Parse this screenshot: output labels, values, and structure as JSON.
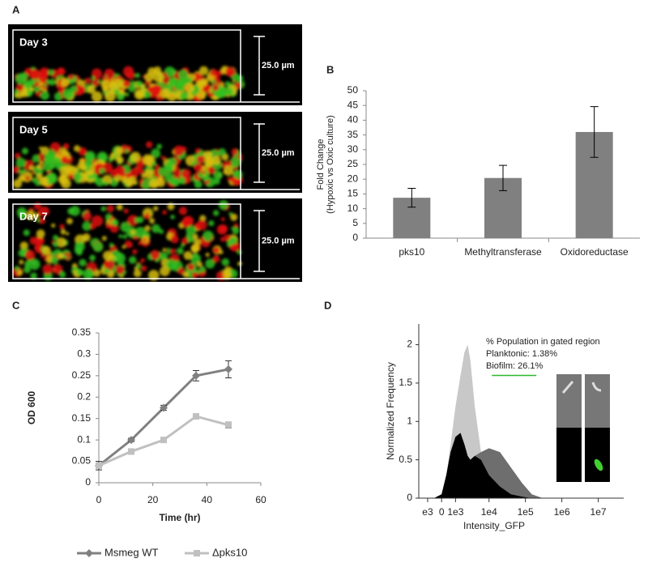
{
  "panel_a": {
    "panel": "A",
    "images": [
      {
        "label": "Day 3",
        "scale": "25.0 µm"
      },
      {
        "label": "Day 5",
        "scale": "25.0 µm"
      },
      {
        "label": "Day 7",
        "scale": "25.0 µm"
      }
    ]
  },
  "chart_data": [
    {
      "type": "bar",
      "panel": "B",
      "ylabel": [
        "Fold Change",
        "(Hypoxic vs Oxic culture)"
      ],
      "categories": [
        "pks10",
        "Methyltransferase",
        "Oxidoreductase"
      ],
      "values": [
        13.7,
        20.4,
        36
      ],
      "errors": [
        3.2,
        4.3,
        8.6
      ],
      "color": "#808080",
      "ylim": [
        0,
        50
      ],
      "yticks": [
        0,
        5,
        10,
        15,
        20,
        25,
        30,
        35,
        40,
        45,
        50
      ]
    },
    {
      "type": "line",
      "panel": "C",
      "xlabel": "Time (hr)",
      "ylabel": "OD 600",
      "x": [
        0,
        12,
        24,
        36,
        48
      ],
      "series": [
        {
          "name": "Msmeg WT",
          "color": "#808080",
          "marker": "diamond",
          "values": [
            0.04,
            0.1,
            0.175,
            0.25,
            0.265
          ],
          "errors": [
            0.005,
            0.004,
            0.006,
            0.012,
            0.02
          ]
        },
        {
          "name": "Δpks10",
          "color": "#c0c0c0",
          "marker": "square",
          "values": [
            0.04,
            0.073,
            0.1,
            0.155,
            0.135
          ],
          "errors": [
            0.01,
            0.006,
            0.003,
            0.005,
            0.007
          ]
        }
      ],
      "xlim": [
        0,
        60
      ],
      "xticks": [
        0,
        20,
        40,
        60
      ],
      "ylim": [
        0,
        0.35
      ],
      "yticks": [
        0,
        0.05,
        0.1,
        0.15,
        0.2,
        0.25,
        0.3,
        0.35
      ]
    },
    {
      "type": "area",
      "panel": "D",
      "xlabel": "Intensity_GFP",
      "ylabel": "Normalized Frequency",
      "xscale": "biexponential",
      "annotation": [
        "% Population in gated region",
        "Planktonic: 1.38%",
        "Biofilm: 26.1%"
      ],
      "gate": {
        "x": [
          12000,
          200000
        ],
        "y": 1.6,
        "color": "#2eb82e"
      },
      "x": [
        -500,
        0,
        300,
        600,
        1000,
        1500,
        2000,
        2500,
        3000,
        4000,
        6000,
        10000,
        20000,
        40000,
        80000,
        150000,
        300000
      ],
      "series": [
        {
          "color": "#c8c8c8",
          "values": [
            0,
            0.05,
            0.3,
            0.7,
            1.2,
            1.6,
            1.9,
            2.0,
            1.8,
            1.2,
            0.6,
            0.3,
            0.15,
            0.05,
            0.02,
            0,
            0
          ]
        },
        {
          "color": "#6e6e6e",
          "values": [
            0,
            0.05,
            0.3,
            0.6,
            0.8,
            0.85,
            0.7,
            0.55,
            0.5,
            0.55,
            0.6,
            0.65,
            0.6,
            0.4,
            0.2,
            0.05,
            0
          ]
        },
        {
          "color": "#000000",
          "values": [
            0,
            0.05,
            0.3,
            0.6,
            0.8,
            0.85,
            0.7,
            0.55,
            0.5,
            0.55,
            0.5,
            0.3,
            0.15,
            0.05,
            0.02,
            0,
            0
          ]
        }
      ],
      "xlim": [
        -2000,
        50000000
      ],
      "xticks": [
        {
          "value": -1000,
          "label": "e3"
        },
        0,
        {
          "value": 1000,
          "label": "1e3"
        },
        {
          "value": 10000,
          "label": "1e4"
        },
        {
          "value": 100000,
          "label": "1e5"
        },
        {
          "value": 1000000,
          "label": "1e6"
        },
        {
          "value": 10000000,
          "label": "1e7"
        }
      ],
      "ylim": [
        0,
        2.27
      ],
      "yticks": [
        0,
        0.5,
        1,
        1.5,
        2
      ]
    }
  ]
}
